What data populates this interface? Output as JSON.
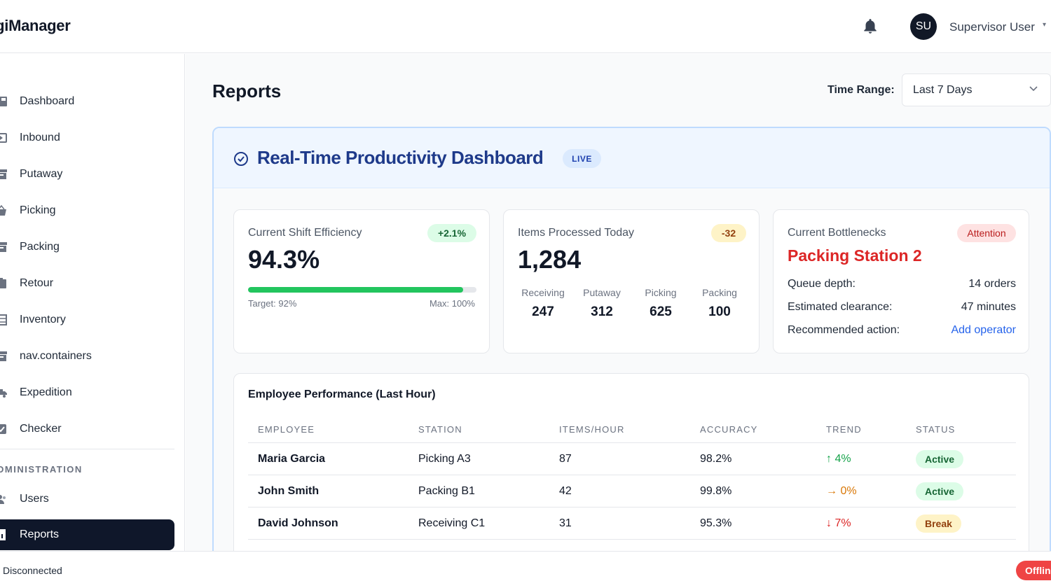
{
  "app": {
    "title": "ogiManager"
  },
  "user": {
    "initials": "SU",
    "name": "Supervisor User"
  },
  "sidebar": {
    "items": [
      {
        "label": "Dashboard",
        "icon": "dashboard-icon"
      },
      {
        "label": "Inbound",
        "icon": "inbound-icon"
      },
      {
        "label": "Putaway",
        "icon": "archive-icon"
      },
      {
        "label": "Picking",
        "icon": "basket-icon"
      },
      {
        "label": "Packing",
        "icon": "box-icon"
      },
      {
        "label": "Retour",
        "icon": "return-box-icon"
      },
      {
        "label": "Inventory",
        "icon": "warehouse-icon"
      },
      {
        "label": "nav.containers",
        "icon": "container-icon"
      },
      {
        "label": "Expedition",
        "icon": "truck-icon"
      },
      {
        "label": "Checker",
        "icon": "checkbox-icon"
      }
    ],
    "section": "DMINISTRATION",
    "admin_items": [
      {
        "label": "Users",
        "icon": "users-icon"
      },
      {
        "label": "Reports",
        "icon": "chart-icon",
        "active": true
      }
    ]
  },
  "main": {
    "title": "Reports",
    "time_range": {
      "label": "Time Range:",
      "value": "Last 7 Days"
    }
  },
  "dashboard": {
    "title": "Real-Time Productivity Dashboard",
    "badge": "LIVE",
    "efficiency": {
      "label": "Current Shift Efficiency",
      "change": "+2.1%",
      "value": "94.3%",
      "progress_fraction": 0.943,
      "target": "Target: 92%",
      "max": "Max: 100%"
    },
    "items": {
      "label": "Items Processed Today",
      "change": "-32",
      "value": "1,284",
      "stages": [
        {
          "label": "Receiving",
          "value": "247"
        },
        {
          "label": "Putaway",
          "value": "312"
        },
        {
          "label": "Picking",
          "value": "625"
        },
        {
          "label": "Packing",
          "value": "100"
        }
      ]
    },
    "bottleneck": {
      "label": "Current Bottlenecks",
      "badge": "Attention",
      "station": "Packing Station 2",
      "rows": [
        {
          "key": "Queue depth:",
          "value": "14 orders"
        },
        {
          "key": "Estimated clearance:",
          "value": "47 minutes"
        },
        {
          "key": "Recommended action:",
          "value": "Add operator"
        }
      ]
    },
    "performance": {
      "title": "Employee Performance (Last Hour)",
      "headers": [
        "EMPLOYEE",
        "STATION",
        "ITEMS/HOUR",
        "ACCURACY",
        "TREND",
        "STATUS"
      ],
      "rows": [
        {
          "employee": "Maria Garcia",
          "station": "Picking A3",
          "items": "87",
          "accuracy": "98.2%",
          "trend": "↑ 4%",
          "trend_color": "#16a34a",
          "status": "Active",
          "status_bg": "#dcfce7",
          "status_color": "#166534"
        },
        {
          "employee": "John Smith",
          "station": "Packing B1",
          "items": "42",
          "accuracy": "99.8%",
          "trend": "→ 0%",
          "trend_color": "#d97706",
          "status": "Active",
          "status_bg": "#dcfce7",
          "status_color": "#166534"
        },
        {
          "employee": "David Johnson",
          "station": "Receiving C1",
          "items": "31",
          "accuracy": "95.3%",
          "trend": "↓ 7%",
          "trend_color": "#dc2626",
          "status": "Break",
          "status_bg": "#fef3c7",
          "status_color": "#92400e"
        }
      ]
    }
  },
  "statusbar": {
    "connection": "Disconnected",
    "offline": "Offline"
  },
  "colors": {
    "accent": "#0f172a",
    "live_blue": "#1e3a8a",
    "success": "#22c55e",
    "danger": "#dc2626"
  }
}
